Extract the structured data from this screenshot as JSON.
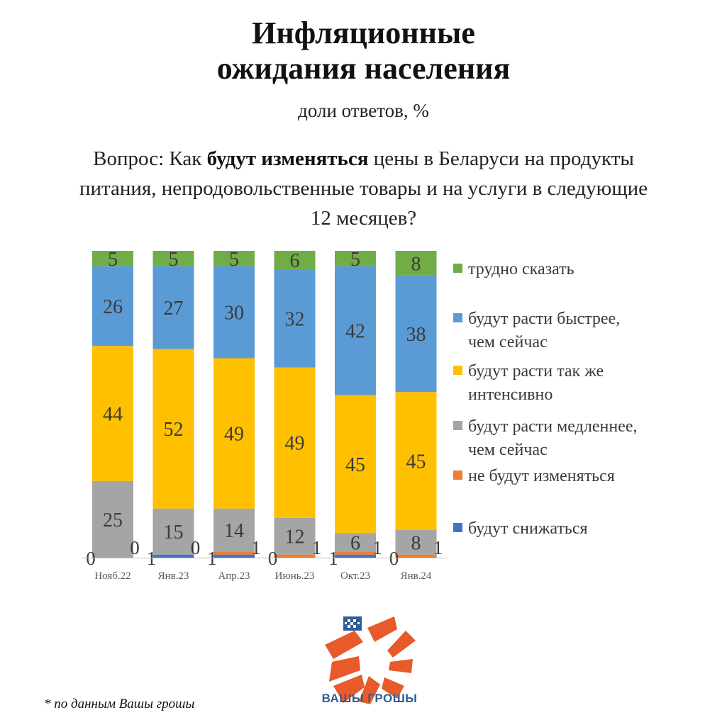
{
  "header": {
    "title_line1": "Инфляционные",
    "title_line2": "ожидания населения",
    "subtitle": "доли ответов, %"
  },
  "question": {
    "prefix": "Вопрос: Как ",
    "bold": "будут изменяться",
    "suffix": " цены в Беларуси на продукты питания, непродовольственные товары и на услуги в следующие 12 месяцев?"
  },
  "footnote": "* по данным Вашы грошы",
  "logo": {
    "text": "ВАШЫ ГРОШЫ",
    "icon": "vashy-groshy-logo-icon"
  },
  "colors": {
    "dark_blue": "#4472c4",
    "orange": "#ed7d31",
    "gray": "#a5a5a5",
    "yellow": "#ffc000",
    "light_blue": "#5b9bd5",
    "green": "#70ad47",
    "logo_orange": "#e85a2a",
    "logo_blue": "#2f5f96"
  },
  "chart_data": {
    "type": "bar",
    "stacked": true,
    "categories": [
      "Нояб.22",
      "Янв.23",
      "Апр.23",
      "Июнь.23",
      "Окт.23",
      "Янв.24"
    ],
    "series": [
      {
        "name": "будут снижаться",
        "color": "#4472c4",
        "values": [
          0,
          1,
          1,
          0,
          1,
          0
        ]
      },
      {
        "name": "не будут изменяться",
        "color": "#ed7d31",
        "values": [
          0,
          0,
          1,
          1,
          1,
          1
        ]
      },
      {
        "name": "будут расти медленнее, чем сейчас",
        "color": "#a5a5a5",
        "values": [
          25,
          15,
          14,
          12,
          6,
          8
        ]
      },
      {
        "name": "будут расти так же интенсивно",
        "color": "#ffc000",
        "values": [
          44,
          52,
          49,
          49,
          45,
          45
        ]
      },
      {
        "name": "будут расти быстрее, чем сейчас",
        "color": "#5b9bd5",
        "values": [
          26,
          27,
          30,
          32,
          42,
          38
        ]
      },
      {
        "name": "трудно сказать",
        "color": "#70ad47",
        "values": [
          5,
          5,
          5,
          6,
          5,
          8
        ]
      }
    ],
    "legend_position": "right",
    "grid": false
  }
}
